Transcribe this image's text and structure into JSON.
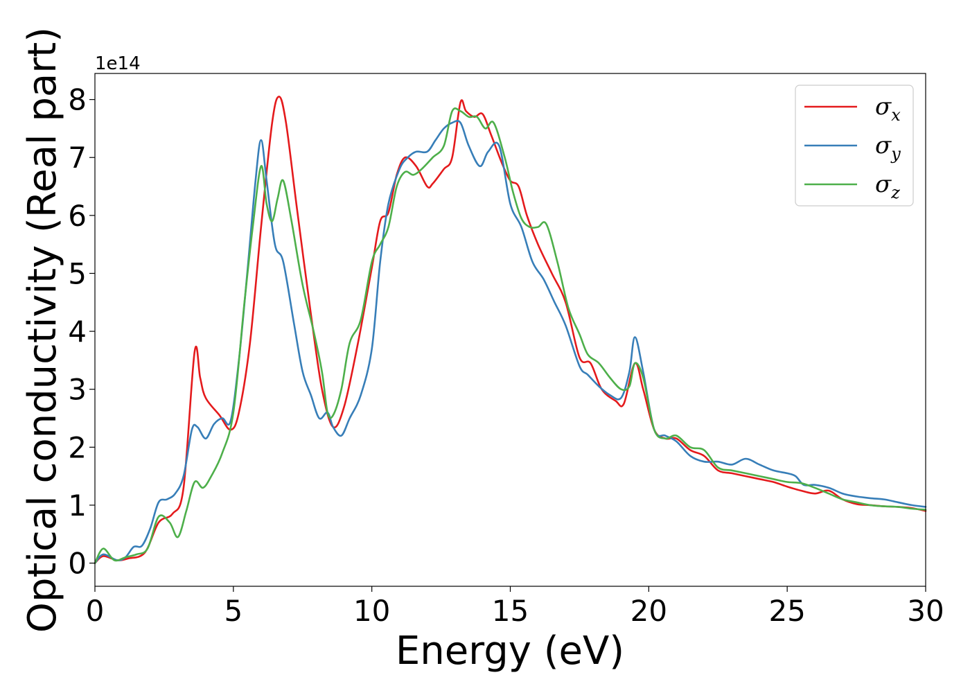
{
  "chart_data": {
    "type": "line",
    "xlabel": "Energy (eV)",
    "ylabel": "Optical conductivity (Real part)",
    "y_offset_label": "1e14",
    "xlim": [
      0,
      30
    ],
    "ylim": [
      -0.4,
      8.45
    ],
    "y_scale_factor": 100000000000000.0,
    "grid": false,
    "legend_position": "top-right",
    "xticks": [
      0,
      5,
      10,
      15,
      20,
      25,
      30
    ],
    "yticks": [
      0,
      1,
      2,
      3,
      4,
      5,
      6,
      7,
      8
    ],
    "series": [
      {
        "name": "σx",
        "symbol": "σ",
        "subscript": "x",
        "color": "#e41a1c",
        "x": [
          0,
          0.3,
          0.8,
          1.2,
          1.8,
          2.3,
          2.8,
          3.2,
          3.6,
          3.8,
          4.0,
          4.5,
          4.9,
          5.2,
          5.6,
          6.0,
          6.4,
          6.65,
          6.9,
          7.3,
          7.8,
          8.2,
          8.6,
          9.0,
          9.5,
          10.0,
          10.3,
          10.6,
          10.9,
          11.2,
          11.6,
          12.0,
          12.2,
          12.6,
          12.9,
          13.2,
          13.4,
          13.7,
          14.0,
          14.3,
          14.7,
          15.0,
          15.3,
          15.6,
          16.0,
          16.5,
          17.0,
          17.5,
          17.9,
          18.3,
          18.8,
          19.1,
          19.5,
          19.8,
          20.2,
          20.6,
          21.0,
          21.5,
          22.0,
          22.5,
          23.0,
          23.5,
          24.0,
          24.5,
          25.0,
          25.5,
          26.0,
          26.5,
          27.0,
          27.5,
          28.0,
          28.5,
          29.0,
          29.5,
          30.0
        ],
        "y": [
          0,
          0.12,
          0.05,
          0.08,
          0.18,
          0.7,
          0.85,
          1.3,
          3.65,
          3.2,
          2.85,
          2.55,
          2.3,
          2.6,
          3.8,
          5.8,
          7.6,
          8.05,
          7.6,
          6.1,
          4.3,
          3.0,
          2.35,
          2.7,
          3.8,
          5.1,
          5.9,
          6.05,
          6.7,
          7.0,
          6.85,
          6.5,
          6.55,
          6.8,
          7.0,
          7.95,
          7.8,
          7.7,
          7.75,
          7.4,
          6.9,
          6.6,
          6.5,
          6.0,
          5.5,
          5.0,
          4.5,
          3.55,
          3.45,
          3.0,
          2.8,
          2.75,
          3.45,
          3.0,
          2.3,
          2.15,
          2.15,
          1.95,
          1.85,
          1.6,
          1.55,
          1.5,
          1.45,
          1.4,
          1.32,
          1.25,
          1.2,
          1.25,
          1.1,
          1.02,
          1.0,
          0.98,
          0.97,
          0.95,
          0.9
        ]
      },
      {
        "name": "σy",
        "symbol": "σ",
        "subscript": "y",
        "color": "#377eb8",
        "x": [
          0,
          0.3,
          0.8,
          1.1,
          1.4,
          1.7,
          2.0,
          2.3,
          2.6,
          2.9,
          3.2,
          3.5,
          3.7,
          4.0,
          4.3,
          4.6,
          4.9,
          5.2,
          5.5,
          5.8,
          6.0,
          6.2,
          6.5,
          6.8,
          7.2,
          7.5,
          7.8,
          8.1,
          8.4,
          8.6,
          8.9,
          9.2,
          9.6,
          10.0,
          10.3,
          10.6,
          11.0,
          11.3,
          11.6,
          12.0,
          12.3,
          12.6,
          12.9,
          13.2,
          13.5,
          13.9,
          14.2,
          14.6,
          15.0,
          15.4,
          15.8,
          16.2,
          16.6,
          17.0,
          17.5,
          17.8,
          18.2,
          18.6,
          19.0,
          19.3,
          19.5,
          19.8,
          20.2,
          20.6,
          21.0,
          21.5,
          22.0,
          22.5,
          23.0,
          23.5,
          24.0,
          24.5,
          25.0,
          25.3,
          25.6,
          26.0,
          26.5,
          27.0,
          27.5,
          28.0,
          28.5,
          29.0,
          29.5,
          30.0
        ],
        "y": [
          0,
          0.15,
          0.05,
          0.1,
          0.28,
          0.3,
          0.6,
          1.05,
          1.1,
          1.2,
          1.5,
          2.3,
          2.35,
          2.15,
          2.4,
          2.5,
          2.45,
          3.5,
          5.0,
          6.6,
          7.3,
          6.6,
          5.5,
          5.2,
          4.1,
          3.3,
          2.9,
          2.5,
          2.6,
          2.35,
          2.2,
          2.5,
          2.9,
          3.7,
          5.2,
          6.2,
          6.8,
          7.0,
          7.1,
          7.1,
          7.3,
          7.5,
          7.6,
          7.6,
          7.2,
          6.85,
          7.1,
          7.2,
          6.2,
          5.8,
          5.2,
          4.9,
          4.5,
          4.1,
          3.4,
          3.25,
          3.05,
          2.9,
          2.85,
          3.3,
          3.9,
          3.3,
          2.3,
          2.2,
          2.1,
          1.85,
          1.75,
          1.75,
          1.7,
          1.8,
          1.7,
          1.6,
          1.55,
          1.5,
          1.35,
          1.35,
          1.3,
          1.2,
          1.15,
          1.12,
          1.1,
          1.05,
          1.0,
          0.97
        ]
      },
      {
        "name": "σz",
        "symbol": "σ",
        "subscript": "z",
        "color": "#4daf4a",
        "x": [
          0,
          0.3,
          0.7,
          1.1,
          1.5,
          1.9,
          2.3,
          2.7,
          3.0,
          3.3,
          3.6,
          3.9,
          4.2,
          4.6,
          5.0,
          5.4,
          5.7,
          6.0,
          6.2,
          6.4,
          6.6,
          6.8,
          7.1,
          7.5,
          7.9,
          8.2,
          8.4,
          8.6,
          8.9,
          9.2,
          9.6,
          10.0,
          10.3,
          10.6,
          10.9,
          11.2,
          11.5,
          11.8,
          12.2,
          12.6,
          12.9,
          13.2,
          13.5,
          13.8,
          14.1,
          14.4,
          14.8,
          15.1,
          15.4,
          15.7,
          16.0,
          16.3,
          16.7,
          17.1,
          17.5,
          17.8,
          18.2,
          18.6,
          19.0,
          19.3,
          19.5,
          19.8,
          20.2,
          20.6,
          21.0,
          21.5,
          22.0,
          22.5,
          23.0,
          23.5,
          24.0,
          24.5,
          25.0,
          25.5,
          26.0,
          26.5,
          27.0,
          27.5,
          28.0,
          28.5,
          29.0,
          29.5,
          30.0
        ],
        "y": [
          0,
          0.25,
          0.05,
          0.1,
          0.15,
          0.25,
          0.8,
          0.7,
          0.45,
          0.9,
          1.4,
          1.3,
          1.5,
          1.9,
          2.6,
          4.5,
          5.8,
          6.85,
          6.2,
          5.9,
          6.3,
          6.6,
          5.9,
          4.8,
          4.0,
          3.3,
          2.6,
          2.55,
          3.0,
          3.8,
          4.2,
          5.2,
          5.5,
          5.8,
          6.5,
          6.75,
          6.7,
          6.8,
          7.0,
          7.2,
          7.8,
          7.8,
          7.7,
          7.7,
          7.5,
          7.6,
          7.0,
          6.4,
          5.95,
          5.8,
          5.8,
          5.85,
          5.2,
          4.4,
          3.95,
          3.6,
          3.45,
          3.2,
          3.0,
          3.05,
          3.45,
          3.2,
          2.3,
          2.15,
          2.2,
          2.0,
          1.95,
          1.65,
          1.6,
          1.55,
          1.5,
          1.45,
          1.4,
          1.38,
          1.3,
          1.2,
          1.1,
          1.05,
          1.0,
          0.98,
          0.97,
          0.94,
          0.92
        ]
      }
    ]
  }
}
